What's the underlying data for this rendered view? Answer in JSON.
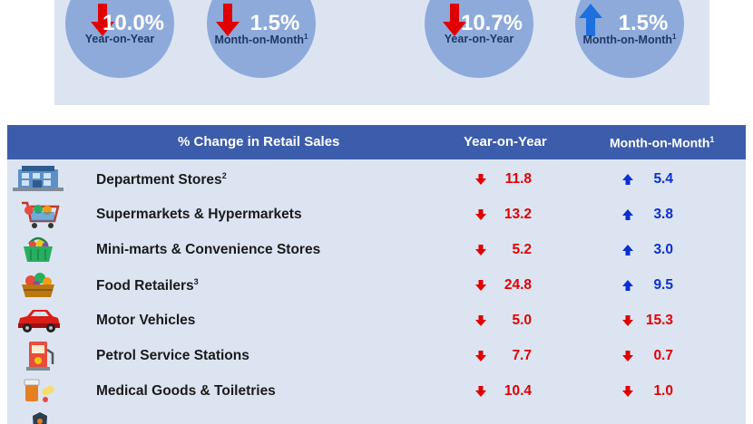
{
  "summary": {
    "bubbles": [
      {
        "value": "10.0%",
        "label": "Year-on-Year",
        "note": "",
        "direction": "down"
      },
      {
        "value": "1.5%",
        "label": "Month-on-Month",
        "note": "1",
        "direction": "down"
      },
      {
        "value": "10.7%",
        "label": "Year-on-Year",
        "note": "",
        "direction": "down"
      },
      {
        "value": "1.5%",
        "label": "Month-on-Month",
        "note": "1",
        "direction": "up"
      }
    ]
  },
  "table": {
    "headers": {
      "category": "% Change in Retail Sales",
      "yoy": "Year-on-Year",
      "mom": "Month-on-Month",
      "mom_note": "1"
    },
    "rows": [
      {
        "icon": "department-store-icon",
        "name": "Department Stores",
        "note": "2",
        "yoy": "11.8",
        "yoy_dir": "down",
        "mom": "5.4",
        "mom_dir": "up"
      },
      {
        "icon": "shopping-cart-icon",
        "name": "Supermarkets & Hypermarkets",
        "note": "",
        "yoy": "13.2",
        "yoy_dir": "down",
        "mom": "3.8",
        "mom_dir": "up"
      },
      {
        "icon": "shopping-basket-icon",
        "name": "Mini-marts & Convenience Stores",
        "note": "",
        "yoy": "5.2",
        "yoy_dir": "down",
        "mom": "3.0",
        "mom_dir": "up"
      },
      {
        "icon": "food-basket-icon",
        "name": "Food Retailers",
        "note": "3",
        "yoy": "24.8",
        "yoy_dir": "down",
        "mom": "9.5",
        "mom_dir": "up"
      },
      {
        "icon": "car-icon",
        "name": "Motor Vehicles",
        "note": "",
        "yoy": "5.0",
        "yoy_dir": "down",
        "mom": "15.3",
        "mom_dir": "down"
      },
      {
        "icon": "fuel-pump-icon",
        "name": "Petrol Service Stations",
        "note": "",
        "yoy": "7.7",
        "yoy_dir": "down",
        "mom": "0.7",
        "mom_dir": "down"
      },
      {
        "icon": "pills-icon",
        "name": "Medical Goods & Toiletries",
        "note": "",
        "yoy": "10.4",
        "yoy_dir": "down",
        "mom": "1.0",
        "mom_dir": "down"
      }
    ]
  },
  "colors": {
    "header_bg": "#3c5cac",
    "panel_bg": "#dce4f2",
    "bubble": "#8eaadb",
    "down": "#e00000",
    "up": "#0a2fd0"
  }
}
